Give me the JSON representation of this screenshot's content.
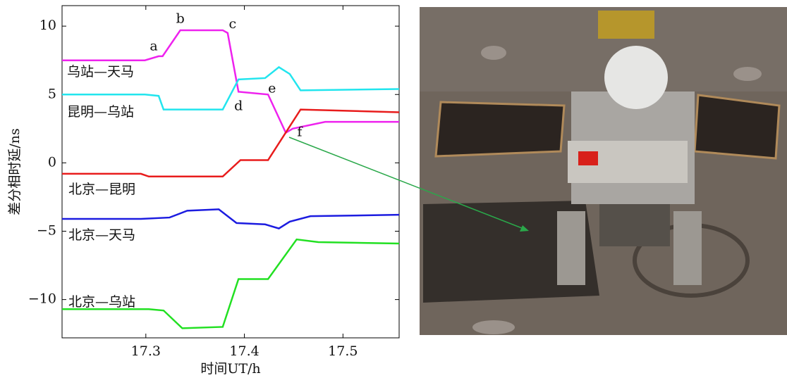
{
  "chart_data": {
    "type": "line",
    "xlabel": "时间UT/h",
    "ylabel": "差分相时延/ns",
    "xlim": [
      17.215,
      17.557
    ],
    "ylim": [
      -12.8,
      11.5
    ],
    "xticks": [
      17.3,
      17.4,
      17.5
    ],
    "yticks": [
      {
        "value": -10,
        "label": "−10"
      },
      {
        "value": -5,
        "label": "−5"
      },
      0,
      5,
      10
    ],
    "series": [
      {
        "name": "乌站—天马",
        "color": "#ee22ee",
        "x": [
          17.215,
          17.299,
          17.313,
          17.317,
          17.335,
          17.378,
          17.383,
          17.394,
          17.424,
          17.442,
          17.449,
          17.482,
          17.557
        ],
        "values": [
          7.5,
          7.5,
          7.8,
          7.8,
          9.7,
          9.7,
          9.5,
          5.2,
          5.0,
          2.2,
          2.5,
          3.0,
          3.0
        ]
      },
      {
        "name": "昆明—乌站",
        "color": "#22e5ee",
        "x": [
          17.215,
          17.299,
          17.313,
          17.318,
          17.378,
          17.394,
          17.421,
          17.435,
          17.446,
          17.457,
          17.557
        ],
        "values": [
          5.0,
          5.0,
          4.9,
          3.9,
          3.9,
          6.1,
          6.2,
          7.0,
          6.5,
          5.3,
          5.4
        ]
      },
      {
        "name": "北京—昆明",
        "color": "#e81c1c",
        "x": [
          17.215,
          17.295,
          17.303,
          17.378,
          17.396,
          17.424,
          17.457,
          17.557
        ],
        "values": [
          -0.8,
          -0.8,
          -1.0,
          -1.0,
          0.2,
          0.2,
          3.9,
          3.7
        ]
      },
      {
        "name": "北京—天马",
        "color": "#1c1ce0",
        "x": [
          17.215,
          17.295,
          17.324,
          17.342,
          17.374,
          17.392,
          17.421,
          17.435,
          17.446,
          17.467,
          17.557
        ],
        "values": [
          -4.1,
          -4.1,
          -4.0,
          -3.5,
          -3.4,
          -4.4,
          -4.5,
          -4.8,
          -4.3,
          -3.9,
          -3.8
        ]
      },
      {
        "name": "北京—乌站",
        "color": "#22e022",
        "x": [
          17.215,
          17.303,
          17.318,
          17.337,
          17.378,
          17.394,
          17.424,
          17.453,
          17.475,
          17.557
        ],
        "values": [
          -10.7,
          -10.7,
          -10.8,
          -12.1,
          -12.0,
          -8.5,
          -8.5,
          -5.6,
          -5.8,
          -5.9
        ]
      }
    ],
    "annotations": [
      {
        "text": "a",
        "x": 17.308,
        "y": 8.5
      },
      {
        "text": "b",
        "x": 17.335,
        "y": 10.5
      },
      {
        "text": "c",
        "x": 17.388,
        "y": 10.1
      },
      {
        "text": "d",
        "x": 17.394,
        "y": 4.1
      },
      {
        "text": "e",
        "x": 17.428,
        "y": 5.4
      },
      {
        "text": "f",
        "x": 17.456,
        "y": 2.2
      }
    ]
  }
}
